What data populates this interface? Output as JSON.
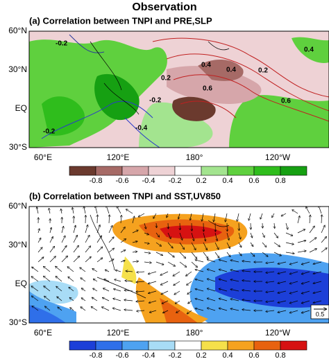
{
  "title": "Observation",
  "panels": [
    {
      "title": "(a) Correlation between TNPI and PRE,SLP",
      "lat_labels": [
        "60°N",
        "30°N",
        "EQ",
        "30°S"
      ],
      "lon_labels": [
        "60°E",
        "120°E",
        "180°",
        "120°W"
      ],
      "contour_labels": [
        "-0.2",
        "0.4",
        "0.4",
        "0.4",
        "0.2",
        "0.6",
        "0.6",
        "0.2",
        "-0.2",
        "-0.4",
        "-0.2"
      ],
      "colorbar": {
        "ticks": [
          "-0.8",
          "-0.6",
          "-0.4",
          "-0.2",
          "0.2",
          "0.4",
          "0.6",
          "0.8"
        ],
        "colors": [
          "#6b3a2e",
          "#a66a66",
          "#d6a6aa",
          "#eed2d5",
          "#ffffff",
          "#a3e48f",
          "#5fd03e",
          "#2fbd1c",
          "#16a012"
        ]
      }
    },
    {
      "title": "(b) Correlation between TNPI and SST,UV850",
      "lat_labels": [
        "60°N",
        "30°N",
        "EQ",
        "30°S"
      ],
      "lon_labels": [
        "60°E",
        "120°E",
        "180°",
        "120°W"
      ],
      "vector_key": "0.5",
      "colorbar": {
        "ticks": [
          "-0.8",
          "-0.6",
          "-0.4",
          "-0.2",
          "0.2",
          "0.4",
          "0.6",
          "0.8"
        ],
        "colors": [
          "#1c3fd8",
          "#2f6fe9",
          "#4ea2f1",
          "#a8dcf6",
          "#ffffff",
          "#f5e04a",
          "#f5a21f",
          "#e8620f",
          "#d61212"
        ]
      }
    }
  ]
}
